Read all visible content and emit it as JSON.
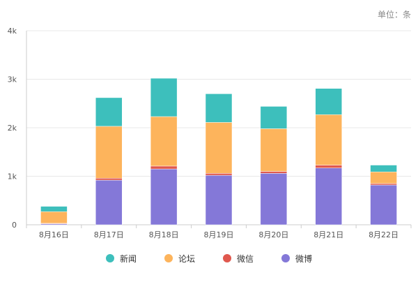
{
  "unit_label": "单位：条",
  "chart_data": {
    "type": "bar",
    "stacked": true,
    "categories": [
      "8月16日",
      "8月17日",
      "8月18日",
      "8月19日",
      "8月20日",
      "8月21日",
      "8月22日"
    ],
    "series": [
      {
        "name": "微博",
        "color": "#8478D8",
        "values": [
          20,
          920,
          1150,
          1020,
          1060,
          1170,
          820
        ]
      },
      {
        "name": "微信",
        "color": "#E0584E",
        "values": [
          10,
          40,
          60,
          40,
          40,
          60,
          30
        ]
      },
      {
        "name": "论坛",
        "color": "#FDB45C",
        "values": [
          240,
          1070,
          1020,
          1050,
          880,
          1040,
          240
        ]
      },
      {
        "name": "新闻",
        "color": "#3DBFBC",
        "values": [
          110,
          590,
          790,
          590,
          460,
          540,
          140
        ]
      }
    ],
    "legend_order": [
      "新闻",
      "论坛",
      "微信",
      "微博"
    ],
    "ylim": [
      0,
      4000
    ],
    "yticks": [
      0,
      1000,
      2000,
      3000,
      4000
    ],
    "ytick_labels": [
      "0",
      "1k",
      "2k",
      "3k",
      "4k"
    ],
    "grid": true,
    "legend_position": "bottom"
  }
}
